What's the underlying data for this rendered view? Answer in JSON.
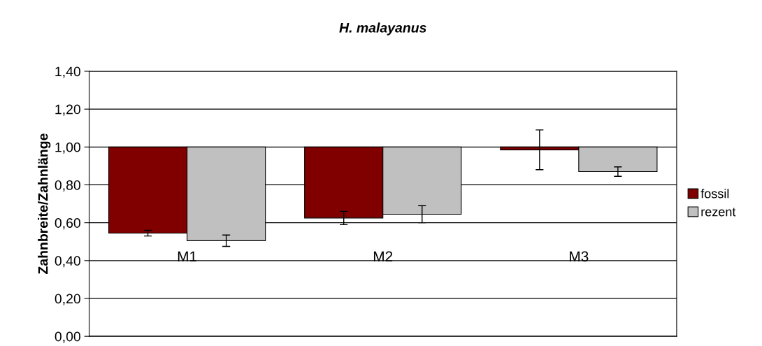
{
  "chart_data": {
    "type": "bar",
    "title": "H. malayanus",
    "ylabel": "Zahnbreite/Zahnlänge",
    "categories": [
      "M1",
      "M2",
      "M3"
    ],
    "series": [
      {
        "name": "fossil",
        "color": "#800000",
        "base": [
          1.0,
          1.0,
          1.0
        ],
        "values": [
          -0.455,
          -0.375,
          -0.015
        ],
        "errors": [
          0.015,
          0.035,
          0.105
        ]
      },
      {
        "name": "rezent",
        "color": "#c0c0c0",
        "base": [
          1.0,
          1.0,
          1.0
        ],
        "values": [
          -0.495,
          -0.355,
          -0.13
        ],
        "errors": [
          0.03,
          0.045,
          0.025
        ]
      }
    ],
    "ylim": [
      0,
      1.4
    ],
    "yticks": [
      {
        "value": 0,
        "label": "0,00"
      },
      {
        "value": 0.2,
        "label": "0,20"
      },
      {
        "value": 0.4,
        "label": "0,40"
      },
      {
        "value": 0.6,
        "label": "0,60"
      },
      {
        "value": 0.8,
        "label": "0,80"
      },
      {
        "value": 1.0,
        "label": "1,00"
      },
      {
        "value": 1.2,
        "label": "1,20"
      },
      {
        "value": 1.4,
        "label": "1,40"
      }
    ],
    "grid": "y",
    "legend": "right"
  }
}
